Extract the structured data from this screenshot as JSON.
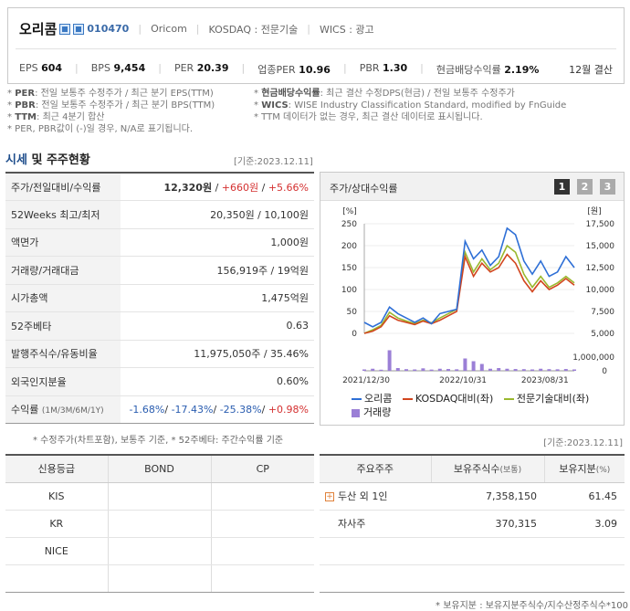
{
  "header": {
    "company_name": "오리콤",
    "code": "010470",
    "english_name": "Oricom",
    "market": "KOSDAQ : 전문기술",
    "wics": "WICS : 광고",
    "icons": [
      "home-icon",
      "ir-icon"
    ]
  },
  "metrics": [
    {
      "label": "EPS",
      "value": "604"
    },
    {
      "label": "BPS",
      "value": "9,454"
    },
    {
      "label": "PER",
      "value": "20.39"
    },
    {
      "label": "업종PER",
      "value": "10.96"
    },
    {
      "label": "PBR",
      "value": "1.30"
    },
    {
      "label": "현금배당수익률",
      "value": "2.19%"
    }
  ],
  "period": "12월 결산",
  "notes": {
    "per_key": "PER",
    "per_text": ": 전일 보통주 수정주가 / 최근 분기 EPS(TTM)",
    "pbr_key": "PBR",
    "pbr_text": ": 전일 보통주 수정주가 / 최근 분기 BPS(TTM)",
    "ttm_key": "TTM",
    "ttm_text": ": 최근 4분기 합산",
    "neg_text": "* PER, PBR값이 (-)일 경우, N/A로 표기됩니다.",
    "div_key": "현금배당수익률",
    "div_text": ": 최근 결산 수정DPS(현금) / 전일 보통주 수정주가",
    "wics_key": "WICS",
    "wics_text": ": WISE Industry Classification Standard, modified by FnGuide",
    "ttm_note": "* TTM 데이터가 없는 경우, 최근 결산 데이터로 표시됩니다."
  },
  "section": {
    "title_hl": "시세",
    "title_rest": "및 주주현황",
    "base_date": "[기준:2023.12.11]"
  },
  "market_table": {
    "price_label": "주가/전일대비/수익률",
    "price": "12,320원",
    "change": "+660원",
    "change_pct": "+5.66%",
    "w52_label": "52Weeks 최고/최저",
    "w52_value": "20,350원 / 10,100원",
    "par_label": "액면가",
    "par_value": "1,000원",
    "volume_label": "거래량/거래대금",
    "volume_value": "156,919주 / 19억원",
    "mcap_label": "시가총액",
    "mcap_value": "1,475억원",
    "beta_label": "52주베타",
    "beta_value": "0.63",
    "shares_label": "발행주식수/유동비율",
    "shares_value": "11,975,050주 / 35.46%",
    "foreign_label": "외국인지분율",
    "foreign_value": "0.60%",
    "return_label": "수익률",
    "return_periods": "(1M/3M/6M/1Y)",
    "r1m": "-1.68%",
    "r3m": "-17.43%",
    "r6m": "-25.38%",
    "r1y": "+0.98%"
  },
  "market_footnote": "* 수정주가(차트포함), 보통주 기준, * 52주베타: 주간수익률 기준",
  "chart_panel": {
    "title": "주가/상대수익률",
    "pages": [
      "1",
      "2",
      "3"
    ]
  },
  "chart_data": {
    "type": "line",
    "left_unit": "[%]",
    "right_unit": "[원]",
    "x_labels": [
      "2021/12/30",
      "2022/10/31",
      "2023/08/31"
    ],
    "ylim_left": [
      0,
      250
    ],
    "ylim_right": [
      5000,
      17500
    ],
    "y_left_ticks": [
      "0",
      "50",
      "100",
      "150",
      "200",
      "250"
    ],
    "y_right_ticks": [
      "5,000",
      "7,500",
      "10,000",
      "12,500",
      "15,000",
      "17,500"
    ],
    "volume_ticks": [
      "0",
      "1,000,000"
    ],
    "volume_max": 2000000,
    "series": [
      {
        "name": "오리콤",
        "color": "#2e6fd6",
        "values": [
          25,
          15,
          25,
          60,
          45,
          35,
          25,
          35,
          22,
          45,
          50,
          55,
          210,
          170,
          190,
          155,
          175,
          240,
          225,
          165,
          135,
          165,
          130,
          140,
          175,
          150
        ]
      },
      {
        "name": "KOSDAQ대비(좌)",
        "color": "#d2451e",
        "values": [
          0,
          5,
          15,
          40,
          30,
          25,
          20,
          28,
          22,
          30,
          40,
          50,
          175,
          130,
          160,
          140,
          150,
          180,
          160,
          120,
          95,
          120,
          100,
          110,
          125,
          110
        ]
      },
      {
        "name": "전문기술대비(좌)",
        "color": "#9ab82e",
        "values": [
          0,
          8,
          18,
          48,
          35,
          28,
          22,
          30,
          24,
          35,
          45,
          55,
          185,
          140,
          170,
          145,
          160,
          200,
          185,
          135,
          105,
          130,
          105,
          115,
          130,
          115
        ]
      }
    ],
    "volume": {
      "name": "거래량",
      "color": "#9b7fd6",
      "values": [
        100000,
        150000,
        80000,
        1500000,
        200000,
        120000,
        100000,
        180000,
        90000,
        150000,
        130000,
        110000,
        900000,
        700000,
        500000,
        150000,
        200000,
        150000,
        130000,
        120000,
        100000,
        150000,
        120000,
        110000,
        130000,
        100000
      ]
    }
  },
  "credit": {
    "base_date": "[기준:2023.12.11]",
    "headers": [
      "신용등급",
      "BOND",
      "CP"
    ],
    "rows": [
      "KIS",
      "KR",
      "NICE"
    ]
  },
  "holders": {
    "headers": [
      "주요주주",
      "보유주식수",
      "(보통)",
      "보유지분",
      "(%)"
    ],
    "rows": [
      {
        "name": "두산 외 1인",
        "shares": "7,358,150",
        "pct": "61.45"
      },
      {
        "name": "자사주",
        "shares": "370,315",
        "pct": "3.09"
      }
    ],
    "footnote": "* 보유지분 : 보유지분주식수/지수산정주식수*100"
  }
}
